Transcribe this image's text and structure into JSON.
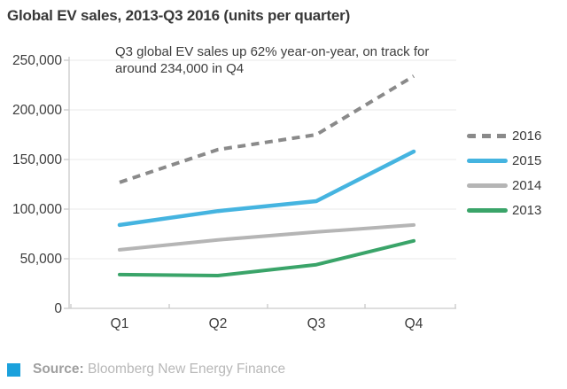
{
  "chart_data": {
    "type": "line",
    "title": "Global EV sales, 2013-Q3 2016 (units per quarter)",
    "annotation": "Q3 global EV sales up 62% year-on-year, on track for around 234,000 in Q4",
    "categories": [
      "Q1",
      "Q2",
      "Q3",
      "Q4"
    ],
    "series": [
      {
        "name": "2016",
        "style": "dashed",
        "color": "#8a8a8a",
        "values": [
          127000,
          160000,
          175000,
          234000
        ]
      },
      {
        "name": "2015",
        "style": "solid",
        "color": "#45b4e0",
        "values": [
          84000,
          98000,
          108000,
          158000
        ]
      },
      {
        "name": "2014",
        "style": "solid",
        "color": "#b5b5b5",
        "values": [
          59000,
          69000,
          77000,
          84000
        ]
      },
      {
        "name": "2013",
        "style": "solid",
        "color": "#3aa469",
        "values": [
          34000,
          33000,
          44000,
          68000
        ]
      }
    ],
    "ylim": [
      0,
      250000
    ],
    "ytick_step": 50000,
    "ytick_labels": [
      "0",
      "50,000",
      "100,000",
      "150,000",
      "200,000",
      "250,000"
    ],
    "xlabel": "",
    "ylabel": "",
    "grid": "horizontal",
    "legend_position": "right"
  },
  "footer": {
    "source_label": "Source:",
    "source_text": "Bloomberg New Energy Finance",
    "square_color": "#1ba1dc"
  }
}
